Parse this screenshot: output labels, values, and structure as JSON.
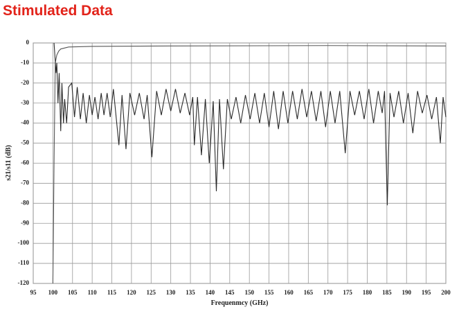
{
  "chart_data": {
    "type": "line",
    "title": "Stimulated Data",
    "x_label": "Frequenmcy (GHz)",
    "y_label": "s21/s11 (dB)",
    "xlim": [
      95,
      200
    ],
    "xticks": [
      95,
      100,
      105,
      110,
      115,
      120,
      125,
      130,
      135,
      140,
      145,
      150,
      155,
      160,
      165,
      170,
      175,
      180,
      185,
      190,
      195,
      200
    ],
    "ylim": [
      -120,
      0
    ],
    "yticks": [
      0,
      -10,
      -20,
      -30,
      -40,
      -50,
      -60,
      -70,
      -80,
      -90,
      -100,
      -110,
      -120
    ],
    "grid": true,
    "series": [
      {
        "color": "#555555",
        "x": [
          100,
          100.3,
          100.6,
          101,
          101.5,
          102,
          104,
          110,
          130,
          170,
          200
        ],
        "values": [
          -120,
          -60,
          -10,
          -6,
          -4,
          -3,
          -2,
          -1.7,
          -1.5,
          -1.3,
          -1.5
        ]
      },
      {
        "color": "#2a2a2a",
        "x": [
          100.3,
          100.8,
          101,
          101.3,
          101.6,
          102,
          102.3,
          102.7,
          103,
          103.5,
          104,
          104.8,
          105.5,
          106.2,
          107,
          107.7,
          108.5,
          109.3,
          110,
          110.7,
          111.5,
          112.3,
          113,
          113.8,
          114.6,
          115.4,
          116.8,
          117.6,
          118.6,
          119.6,
          120.8,
          122,
          123.2,
          124,
          125.2,
          126.4,
          127.6,
          128.8,
          130,
          131.2,
          132.4,
          133.6,
          134.8,
          135.6,
          136,
          136.8,
          137.8,
          138.8,
          139.8,
          140.8,
          141.6,
          142.4,
          143.4,
          144.4,
          145.4,
          146.6,
          147.8,
          149,
          150.2,
          151.4,
          152.6,
          153.8,
          155,
          156.2,
          157.4,
          158.6,
          159.8,
          161,
          162.2,
          163.4,
          164.6,
          165.8,
          167,
          168.2,
          169.4,
          170.6,
          171.8,
          173,
          174.4,
          175.6,
          176.8,
          178,
          179.2,
          180.4,
          181.6,
          182.8,
          183.8,
          184.4,
          185.1,
          185.8,
          186.8,
          188,
          189.2,
          190.4,
          191.6,
          192.8,
          194,
          195.2,
          196.4,
          197.6,
          198.6,
          199.3,
          200
        ],
        "values": [
          0,
          -15,
          -10,
          -30,
          -15,
          -44,
          -20,
          -40,
          -28,
          -40,
          -22,
          -20,
          -37,
          -22,
          -38,
          -25,
          -40,
          -26,
          -36,
          -27,
          -38,
          -25,
          -36,
          -25,
          -37,
          -23,
          -51,
          -26,
          -53,
          -25,
          -36,
          -25,
          -38,
          -26,
          -57,
          -24,
          -36,
          -23,
          -34,
          -23,
          -35,
          -25,
          -36,
          -27,
          -51,
          -27,
          -56,
          -28,
          -60,
          -29,
          -74,
          -28,
          -63,
          -28,
          -38,
          -27,
          -40,
          -26,
          -38,
          -25,
          -40,
          -25,
          -42,
          -24,
          -43,
          -24,
          -40,
          -24,
          -38,
          -23,
          -37,
          -24,
          -39,
          -24,
          -42,
          -24,
          -40,
          -24,
          -55,
          -24,
          -36,
          -24,
          -38,
          -23,
          -40,
          -24,
          -35,
          -24,
          -81,
          -25,
          -37,
          -24,
          -40,
          -25,
          -45,
          -24,
          -35,
          -26,
          -38,
          -27,
          -50,
          -27,
          -37
        ]
      }
    ]
  }
}
